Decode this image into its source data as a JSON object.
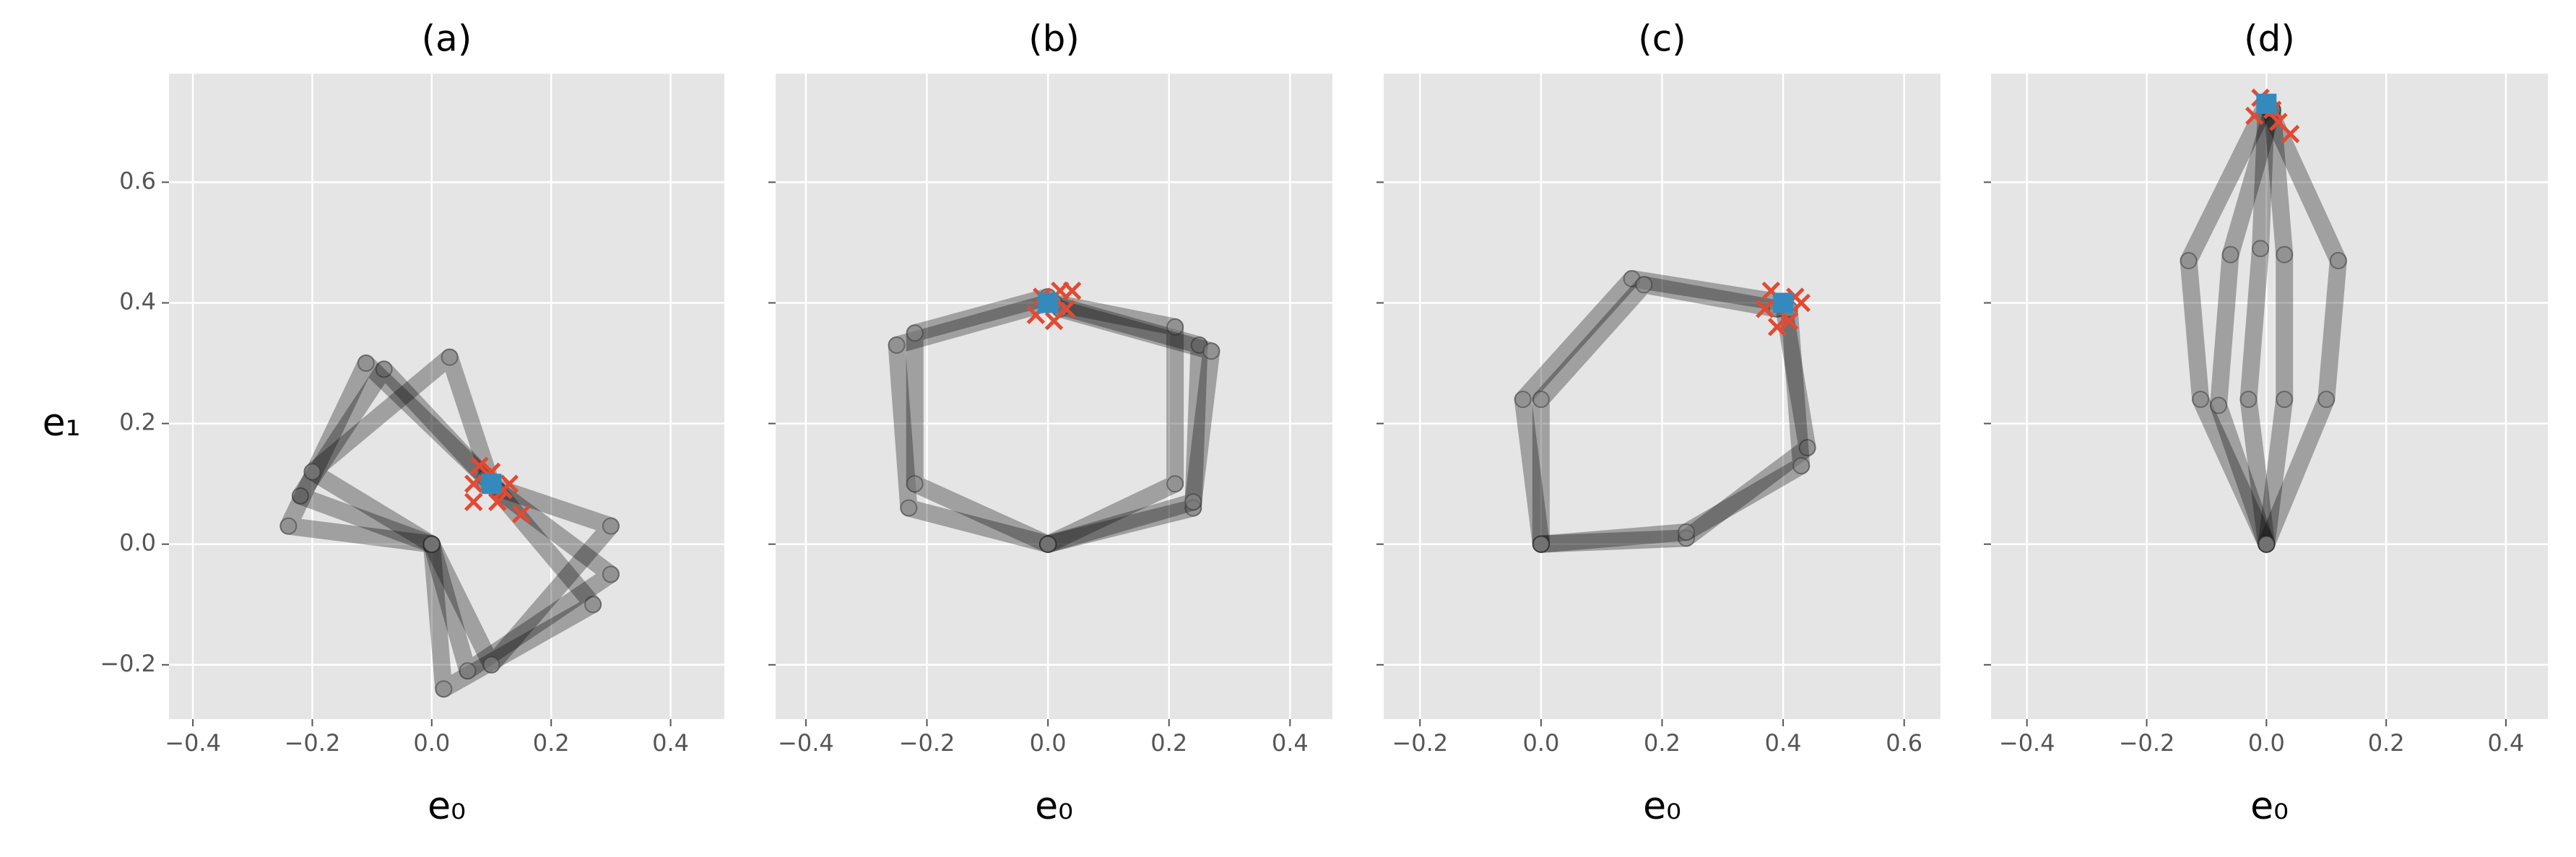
{
  "chart_data": [
    {
      "type": "line",
      "title": "(a)",
      "xlabel": "e₀",
      "ylabel": "e₁",
      "xlim": [
        -0.44,
        0.49
      ],
      "ylim": [
        -0.29,
        0.78
      ],
      "xticks": [
        {
          "value": -0.4,
          "label": "−0.4"
        },
        {
          "value": -0.2,
          "label": "−0.2"
        },
        {
          "value": 0,
          "label": "0.0"
        },
        0.2,
        0.4
      ],
      "yticks": [
        {
          "value": -0.2,
          "label": "−0.2"
        },
        {
          "value": 0,
          "label": "0.0"
        },
        0.2,
        0.4,
        0.6
      ],
      "grid": true,
      "arm_color": "#000000",
      "target_color": "#e24a33",
      "goal_color": "#348abd",
      "arms": [
        {
          "x": [
            0,
            -0.22,
            -0.08,
            0.1
          ],
          "y": [
            0,
            0.08,
            0.29,
            0.1
          ]
        },
        {
          "x": [
            0,
            -0.24,
            -0.11,
            0.09
          ],
          "y": [
            0,
            0.03,
            0.3,
            0.11
          ]
        },
        {
          "x": [
            0,
            -0.2,
            0.03,
            0.1
          ],
          "y": [
            0,
            0.12,
            0.31,
            0.1
          ]
        },
        {
          "x": [
            0,
            0.02,
            0.27,
            0.1
          ],
          "y": [
            0,
            -0.24,
            -0.1,
            0.1
          ]
        },
        {
          "x": [
            0,
            0.06,
            0.3,
            0.11
          ],
          "y": [
            0,
            -0.21,
            -0.05,
            0.09
          ]
        },
        {
          "x": [
            0,
            0.1,
            0.3,
            0.09
          ],
          "y": [
            0,
            -0.2,
            0.03,
            0.1
          ]
        }
      ],
      "targets": {
        "x": [
          0.08,
          0.12,
          0.07,
          0.15,
          0.1,
          0.13,
          0.07,
          0.11
        ],
        "y": [
          0.13,
          0.09,
          0.07,
          0.05,
          0.12,
          0.1,
          0.1,
          0.07
        ]
      },
      "goal": {
        "x": [
          0.1
        ],
        "y": [
          0.1
        ]
      }
    },
    {
      "type": "line",
      "title": "(b)",
      "xlabel": "e₀",
      "xlim": [
        -0.45,
        0.47
      ],
      "ylim": [
        -0.29,
        0.78
      ],
      "xticks": [
        {
          "value": -0.4,
          "label": "−0.4"
        },
        {
          "value": -0.2,
          "label": "−0.2"
        },
        {
          "value": 0,
          "label": "0.0"
        },
        0.2,
        0.4
      ],
      "yticks": [
        -0.2,
        0,
        0.2,
        0.4,
        0.6
      ],
      "ytick_labels": false,
      "grid": true,
      "arm_color": "#000000",
      "target_color": "#e24a33",
      "goal_color": "#348abd",
      "arms": [
        {
          "x": [
            0,
            -0.23,
            -0.25,
            0
          ],
          "y": [
            0,
            0.06,
            0.33,
            0.4
          ]
        },
        {
          "x": [
            0,
            -0.22,
            -0.22,
            0
          ],
          "y": [
            0,
            0.1,
            0.35,
            0.41
          ]
        },
        {
          "x": [
            0,
            0.24,
            0.25,
            0
          ],
          "y": [
            0,
            0.06,
            0.33,
            0.4
          ]
        },
        {
          "x": [
            0,
            0.21,
            0.21,
            0.01
          ],
          "y": [
            0,
            0.1,
            0.36,
            0.4
          ]
        },
        {
          "x": [
            0,
            0.24,
            0.27,
            0.02
          ],
          "y": [
            0,
            0.07,
            0.32,
            0.39
          ]
        }
      ],
      "targets": {
        "x": [
          -0.02,
          0.02,
          0.03,
          -0.01,
          0.01,
          0.04
        ],
        "y": [
          0.38,
          0.42,
          0.39,
          0.41,
          0.37,
          0.42
        ]
      },
      "goal": {
        "x": [
          0
        ],
        "y": [
          0.4
        ]
      }
    },
    {
      "type": "line",
      "title": "(c)",
      "xlabel": "e₀",
      "xlim": [
        -0.26,
        0.66
      ],
      "ylim": [
        -0.29,
        0.78
      ],
      "xticks": [
        {
          "value": -0.2,
          "label": "−0.2"
        },
        {
          "value": 0,
          "label": "0.0"
        },
        0.2,
        0.4,
        0.6
      ],
      "yticks": [
        -0.2,
        0,
        0.2,
        0.4,
        0.6
      ],
      "ytick_labels": false,
      "grid": true,
      "arm_color": "#000000",
      "target_color": "#e24a33",
      "goal_color": "#348abd",
      "arms": [
        {
          "x": [
            0,
            -0.03,
            0.15,
            0.4
          ],
          "y": [
            0,
            0.24,
            0.44,
            0.4
          ]
        },
        {
          "x": [
            0,
            0,
            0.17,
            0.39
          ],
          "y": [
            0,
            0.24,
            0.43,
            0.39
          ]
        },
        {
          "x": [
            0,
            0.24,
            0.44,
            0.4
          ],
          "y": [
            0,
            0.01,
            0.16,
            0.4
          ]
        },
        {
          "x": [
            0,
            0.24,
            0.43,
            0.41
          ],
          "y": [
            0,
            0.02,
            0.13,
            0.39
          ]
        }
      ],
      "targets": {
        "x": [
          0.37,
          0.42,
          0.39,
          0.41,
          0.38,
          0.43
        ],
        "y": [
          0.39,
          0.41,
          0.36,
          0.37,
          0.42,
          0.4
        ]
      },
      "goal": {
        "x": [
          0.4
        ],
        "y": [
          0.4
        ]
      }
    },
    {
      "type": "line",
      "title": "(d)",
      "xlabel": "e₀",
      "xlim": [
        -0.46,
        0.47
      ],
      "ylim": [
        -0.29,
        0.78
      ],
      "xticks": [
        {
          "value": -0.4,
          "label": "−0.4"
        },
        {
          "value": -0.2,
          "label": "−0.2"
        },
        {
          "value": 0,
          "label": "0.0"
        },
        0.2,
        0.4
      ],
      "yticks": [
        -0.2,
        0,
        0.2,
        0.4,
        0.6
      ],
      "ytick_labels": false,
      "grid": true,
      "arm_color": "#000000",
      "target_color": "#e24a33",
      "goal_color": "#348abd",
      "arms": [
        {
          "x": [
            0,
            -0.11,
            -0.13,
            0
          ],
          "y": [
            0,
            0.24,
            0.47,
            0.73
          ]
        },
        {
          "x": [
            0,
            -0.03,
            -0.01,
            0
          ],
          "y": [
            0,
            0.24,
            0.49,
            0.73
          ]
        },
        {
          "x": [
            0,
            0.03,
            0.03,
            0.01
          ],
          "y": [
            0,
            0.24,
            0.48,
            0.72
          ]
        },
        {
          "x": [
            0,
            0.1,
            0.12,
            0
          ],
          "y": [
            0,
            0.24,
            0.47,
            0.73
          ]
        },
        {
          "x": [
            0,
            -0.08,
            -0.06,
            0.01
          ],
          "y": [
            0,
            0.23,
            0.48,
            0.72
          ]
        }
      ],
      "targets": {
        "x": [
          -0.02,
          0.02,
          0.04,
          -0.01,
          0.01
        ],
        "y": [
          0.71,
          0.7,
          0.68,
          0.74,
          0.72
        ]
      },
      "goal": {
        "x": [
          0
        ],
        "y": [
          0.73
        ]
      }
    }
  ]
}
